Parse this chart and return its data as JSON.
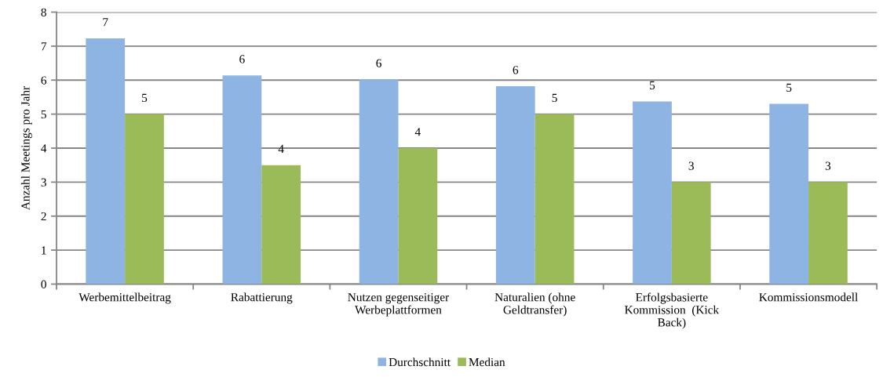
{
  "chart_data": {
    "type": "bar",
    "ylabel": "Anzahl Meetings pro Jahr",
    "categories": [
      "Werbemittelbeitrag",
      "Rabattierung",
      "Nutzen gegenseitiger\nWerbeplattformen",
      "Naturalien (ohne\nGeldtransfer)",
      "Erfolgsbasierte\nKommission  (Kick\nBack)",
      "Kommissionsmodell"
    ],
    "series": [
      {
        "name": "Durchschnitt",
        "color": "#8eb4e3",
        "values": [
          7.23,
          6.14,
          6.02,
          5.82,
          5.37,
          5.3
        ],
        "value_labels": [
          "7",
          "6",
          "6",
          "6",
          "5",
          "5"
        ]
      },
      {
        "name": "Median",
        "color": "#9bbb59",
        "values": [
          5,
          3.5,
          4,
          5,
          3,
          3
        ],
        "value_labels": [
          "5",
          "4",
          "4",
          "5",
          "3",
          "3"
        ]
      }
    ],
    "ylim": [
      0,
      8
    ],
    "yticks": [
      0,
      1,
      2,
      3,
      4,
      5,
      6,
      7,
      8
    ],
    "grid": "y",
    "legend": "bottom"
  }
}
